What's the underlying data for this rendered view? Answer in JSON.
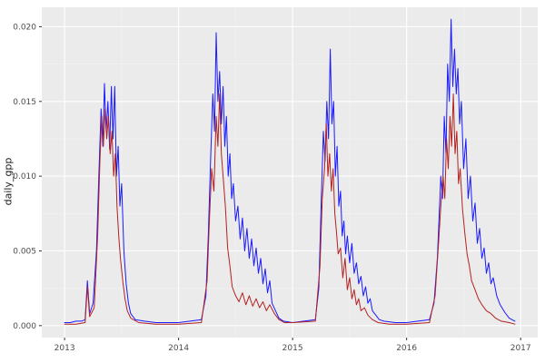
{
  "chart_data": {
    "type": "line",
    "title": "",
    "xlabel": "",
    "ylabel": "daily_gpp",
    "xlim": [
      2012.8,
      2017.15
    ],
    "ylim": [
      -0.0008,
      0.0213
    ],
    "grid": "on",
    "legend": "none",
    "panel_bg": "#ebebeb",
    "grid_major_color": "#ffffff",
    "grid_minor_color": "#f4f4f4",
    "tick_color": "#333333",
    "tick_label_color": "#4d4d4d",
    "x_ticks": {
      "values": [
        2013,
        2014,
        2015,
        2016,
        2017
      ],
      "labels": [
        "2013",
        "2014",
        "2015",
        "2016",
        "2017"
      ]
    },
    "y_ticks": {
      "values": [
        0,
        0.005,
        0.01,
        0.015,
        0.02
      ],
      "labels": [
        "0.000",
        "0.005",
        "0.010",
        "0.015",
        "0.020"
      ]
    },
    "series": [
      {
        "name": "series-blue",
        "color": "#1a1aff",
        "points": [
          [
            2013.0,
            0.0002
          ],
          [
            2013.05,
            0.0002
          ],
          [
            2013.1,
            0.0003
          ],
          [
            2013.15,
            0.0003
          ],
          [
            2013.18,
            0.0004
          ],
          [
            2013.2,
            0.003
          ],
          [
            2013.22,
            0.0008
          ],
          [
            2013.25,
            0.0015
          ],
          [
            2013.28,
            0.005
          ],
          [
            2013.3,
            0.01
          ],
          [
            2013.32,
            0.0145
          ],
          [
            2013.335,
            0.012
          ],
          [
            2013.35,
            0.0162
          ],
          [
            2013.365,
            0.013
          ],
          [
            2013.38,
            0.015
          ],
          [
            2013.395,
            0.0118
          ],
          [
            2013.41,
            0.016
          ],
          [
            2013.425,
            0.0125
          ],
          [
            2013.44,
            0.016
          ],
          [
            2013.455,
            0.01
          ],
          [
            2013.47,
            0.012
          ],
          [
            2013.485,
            0.008
          ],
          [
            2013.5,
            0.0095
          ],
          [
            2013.52,
            0.005
          ],
          [
            2013.54,
            0.0028
          ],
          [
            2013.56,
            0.0015
          ],
          [
            2013.58,
            0.0008
          ],
          [
            2013.62,
            0.0004
          ],
          [
            2013.7,
            0.0003
          ],
          [
            2013.8,
            0.0002
          ],
          [
            2013.9,
            0.0002
          ],
          [
            2014.0,
            0.0002
          ],
          [
            2014.1,
            0.0003
          ],
          [
            2014.2,
            0.0004
          ],
          [
            2014.24,
            0.002
          ],
          [
            2014.26,
            0.006
          ],
          [
            2014.28,
            0.011
          ],
          [
            2014.3,
            0.0155
          ],
          [
            2014.315,
            0.013
          ],
          [
            2014.33,
            0.0196
          ],
          [
            2014.345,
            0.015
          ],
          [
            2014.36,
            0.017
          ],
          [
            2014.375,
            0.0135
          ],
          [
            2014.39,
            0.016
          ],
          [
            2014.405,
            0.012
          ],
          [
            2014.42,
            0.014
          ],
          [
            2014.435,
            0.01
          ],
          [
            2014.45,
            0.0115
          ],
          [
            2014.465,
            0.0085
          ],
          [
            2014.48,
            0.0095
          ],
          [
            2014.5,
            0.007
          ],
          [
            2014.52,
            0.008
          ],
          [
            2014.54,
            0.0058
          ],
          [
            2014.56,
            0.0072
          ],
          [
            2014.58,
            0.005
          ],
          [
            2014.6,
            0.0065
          ],
          [
            2014.62,
            0.0045
          ],
          [
            2014.64,
            0.0058
          ],
          [
            2014.66,
            0.004
          ],
          [
            2014.68,
            0.0052
          ],
          [
            2014.7,
            0.0035
          ],
          [
            2014.72,
            0.0045
          ],
          [
            2014.74,
            0.0028
          ],
          [
            2014.76,
            0.0038
          ],
          [
            2014.78,
            0.0022
          ],
          [
            2014.8,
            0.003
          ],
          [
            2014.82,
            0.0015
          ],
          [
            2014.85,
            0.001
          ],
          [
            2014.88,
            0.0005
          ],
          [
            2014.92,
            0.0003
          ],
          [
            2015.0,
            0.0002
          ],
          [
            2015.1,
            0.0003
          ],
          [
            2015.2,
            0.0004
          ],
          [
            2015.23,
            0.0025
          ],
          [
            2015.25,
            0.008
          ],
          [
            2015.27,
            0.013
          ],
          [
            2015.285,
            0.011
          ],
          [
            2015.3,
            0.015
          ],
          [
            2015.315,
            0.0125
          ],
          [
            2015.33,
            0.0185
          ],
          [
            2015.345,
            0.0135
          ],
          [
            2015.36,
            0.015
          ],
          [
            2015.375,
            0.01
          ],
          [
            2015.39,
            0.012
          ],
          [
            2015.405,
            0.008
          ],
          [
            2015.42,
            0.009
          ],
          [
            2015.435,
            0.006
          ],
          [
            2015.45,
            0.007
          ],
          [
            2015.465,
            0.0048
          ],
          [
            2015.48,
            0.006
          ],
          [
            2015.5,
            0.0042
          ],
          [
            2015.52,
            0.0055
          ],
          [
            2015.54,
            0.0035
          ],
          [
            2015.56,
            0.0042
          ],
          [
            2015.58,
            0.0028
          ],
          [
            2015.6,
            0.0033
          ],
          [
            2015.62,
            0.002
          ],
          [
            2015.64,
            0.0026
          ],
          [
            2015.66,
            0.0015
          ],
          [
            2015.68,
            0.0018
          ],
          [
            2015.7,
            0.001
          ],
          [
            2015.73,
            0.0007
          ],
          [
            2015.76,
            0.0004
          ],
          [
            2015.8,
            0.0003
          ],
          [
            2015.9,
            0.0002
          ],
          [
            2016.0,
            0.0002
          ],
          [
            2016.1,
            0.0003
          ],
          [
            2016.2,
            0.0004
          ],
          [
            2016.24,
            0.0015
          ],
          [
            2016.27,
            0.0045
          ],
          [
            2016.3,
            0.01
          ],
          [
            2016.315,
            0.0085
          ],
          [
            2016.33,
            0.014
          ],
          [
            2016.345,
            0.0115
          ],
          [
            2016.36,
            0.0175
          ],
          [
            2016.375,
            0.015
          ],
          [
            2016.39,
            0.0205
          ],
          [
            2016.405,
            0.016
          ],
          [
            2016.42,
            0.0185
          ],
          [
            2016.435,
            0.0155
          ],
          [
            2016.45,
            0.0172
          ],
          [
            2016.465,
            0.0135
          ],
          [
            2016.48,
            0.015
          ],
          [
            2016.5,
            0.0105
          ],
          [
            2016.52,
            0.0125
          ],
          [
            2016.54,
            0.0085
          ],
          [
            2016.56,
            0.01
          ],
          [
            2016.58,
            0.007
          ],
          [
            2016.6,
            0.0082
          ],
          [
            2016.62,
            0.0055
          ],
          [
            2016.64,
            0.0065
          ],
          [
            2016.66,
            0.0045
          ],
          [
            2016.68,
            0.0052
          ],
          [
            2016.7,
            0.0035
          ],
          [
            2016.72,
            0.0042
          ],
          [
            2016.74,
            0.0028
          ],
          [
            2016.76,
            0.0032
          ],
          [
            2016.79,
            0.002
          ],
          [
            2016.82,
            0.0014
          ],
          [
            2016.86,
            0.0009
          ],
          [
            2016.9,
            0.0005
          ],
          [
            2016.95,
            0.0003
          ]
        ]
      },
      {
        "name": "series-red",
        "color": "#b22222",
        "points": [
          [
            2013.0,
            0.0001
          ],
          [
            2013.1,
            0.0001
          ],
          [
            2013.18,
            0.0002
          ],
          [
            2013.2,
            0.0026
          ],
          [
            2013.22,
            0.0006
          ],
          [
            2013.26,
            0.0012
          ],
          [
            2013.29,
            0.006
          ],
          [
            2013.31,
            0.011
          ],
          [
            2013.325,
            0.014
          ],
          [
            2013.34,
            0.012
          ],
          [
            2013.355,
            0.0145
          ],
          [
            2013.37,
            0.0125
          ],
          [
            2013.385,
            0.014
          ],
          [
            2013.4,
            0.0115
          ],
          [
            2013.415,
            0.013
          ],
          [
            2013.43,
            0.01
          ],
          [
            2013.445,
            0.0115
          ],
          [
            2013.46,
            0.008
          ],
          [
            2013.475,
            0.006
          ],
          [
            2013.49,
            0.0045
          ],
          [
            2013.51,
            0.003
          ],
          [
            2013.53,
            0.0018
          ],
          [
            2013.55,
            0.001
          ],
          [
            2013.58,
            0.0005
          ],
          [
            2013.65,
            0.0002
          ],
          [
            2013.8,
            0.0001
          ],
          [
            2014.0,
            0.0001
          ],
          [
            2014.2,
            0.0002
          ],
          [
            2014.25,
            0.003
          ],
          [
            2014.27,
            0.007
          ],
          [
            2014.29,
            0.0105
          ],
          [
            2014.31,
            0.009
          ],
          [
            2014.33,
            0.014
          ],
          [
            2014.345,
            0.012
          ],
          [
            2014.36,
            0.0155
          ],
          [
            2014.375,
            0.0115
          ],
          [
            2014.39,
            0.01
          ],
          [
            2014.41,
            0.008
          ],
          [
            2014.43,
            0.0052
          ],
          [
            2014.45,
            0.004
          ],
          [
            2014.47,
            0.0026
          ],
          [
            2014.5,
            0.002
          ],
          [
            2014.53,
            0.0016
          ],
          [
            2014.56,
            0.0022
          ],
          [
            2014.59,
            0.0014
          ],
          [
            2014.62,
            0.002
          ],
          [
            2014.65,
            0.0013
          ],
          [
            2014.68,
            0.0018
          ],
          [
            2014.71,
            0.0012
          ],
          [
            2014.74,
            0.0016
          ],
          [
            2014.77,
            0.001
          ],
          [
            2014.8,
            0.0014
          ],
          [
            2014.84,
            0.0008
          ],
          [
            2014.88,
            0.0004
          ],
          [
            2014.93,
            0.0002
          ],
          [
            2015.0,
            0.0002
          ],
          [
            2015.2,
            0.0003
          ],
          [
            2015.24,
            0.004
          ],
          [
            2015.26,
            0.0085
          ],
          [
            2015.28,
            0.0105
          ],
          [
            2015.295,
            0.0135
          ],
          [
            2015.31,
            0.01
          ],
          [
            2015.325,
            0.0115
          ],
          [
            2015.34,
            0.009
          ],
          [
            2015.355,
            0.0105
          ],
          [
            2015.37,
            0.0075
          ],
          [
            2015.385,
            0.0062
          ],
          [
            2015.4,
            0.0048
          ],
          [
            2015.42,
            0.0052
          ],
          [
            2015.44,
            0.0032
          ],
          [
            2015.46,
            0.0045
          ],
          [
            2015.48,
            0.0024
          ],
          [
            2015.5,
            0.0032
          ],
          [
            2015.52,
            0.0018
          ],
          [
            2015.54,
            0.0024
          ],
          [
            2015.56,
            0.0014
          ],
          [
            2015.58,
            0.0018
          ],
          [
            2015.6,
            0.001
          ],
          [
            2015.63,
            0.0012
          ],
          [
            2015.66,
            0.0007
          ],
          [
            2015.7,
            0.0004
          ],
          [
            2015.75,
            0.0002
          ],
          [
            2015.85,
            0.0001
          ],
          [
            2016.0,
            0.0001
          ],
          [
            2016.2,
            0.0002
          ],
          [
            2016.25,
            0.002
          ],
          [
            2016.28,
            0.0055
          ],
          [
            2016.3,
            0.008
          ],
          [
            2016.32,
            0.01
          ],
          [
            2016.335,
            0.0085
          ],
          [
            2016.35,
            0.0125
          ],
          [
            2016.365,
            0.0105
          ],
          [
            2016.38,
            0.014
          ],
          [
            2016.395,
            0.012
          ],
          [
            2016.41,
            0.0155
          ],
          [
            2016.425,
            0.0115
          ],
          [
            2016.44,
            0.013
          ],
          [
            2016.455,
            0.0095
          ],
          [
            2016.47,
            0.0105
          ],
          [
            2016.49,
            0.0078
          ],
          [
            2016.51,
            0.0062
          ],
          [
            2016.53,
            0.0048
          ],
          [
            2016.55,
            0.004
          ],
          [
            2016.57,
            0.003
          ],
          [
            2016.6,
            0.0024
          ],
          [
            2016.63,
            0.0018
          ],
          [
            2016.66,
            0.0014
          ],
          [
            2016.7,
            0.001
          ],
          [
            2016.74,
            0.0008
          ],
          [
            2016.78,
            0.0005
          ],
          [
            2016.83,
            0.0003
          ],
          [
            2016.9,
            0.0002
          ],
          [
            2016.95,
            0.0001
          ]
        ]
      }
    ]
  }
}
